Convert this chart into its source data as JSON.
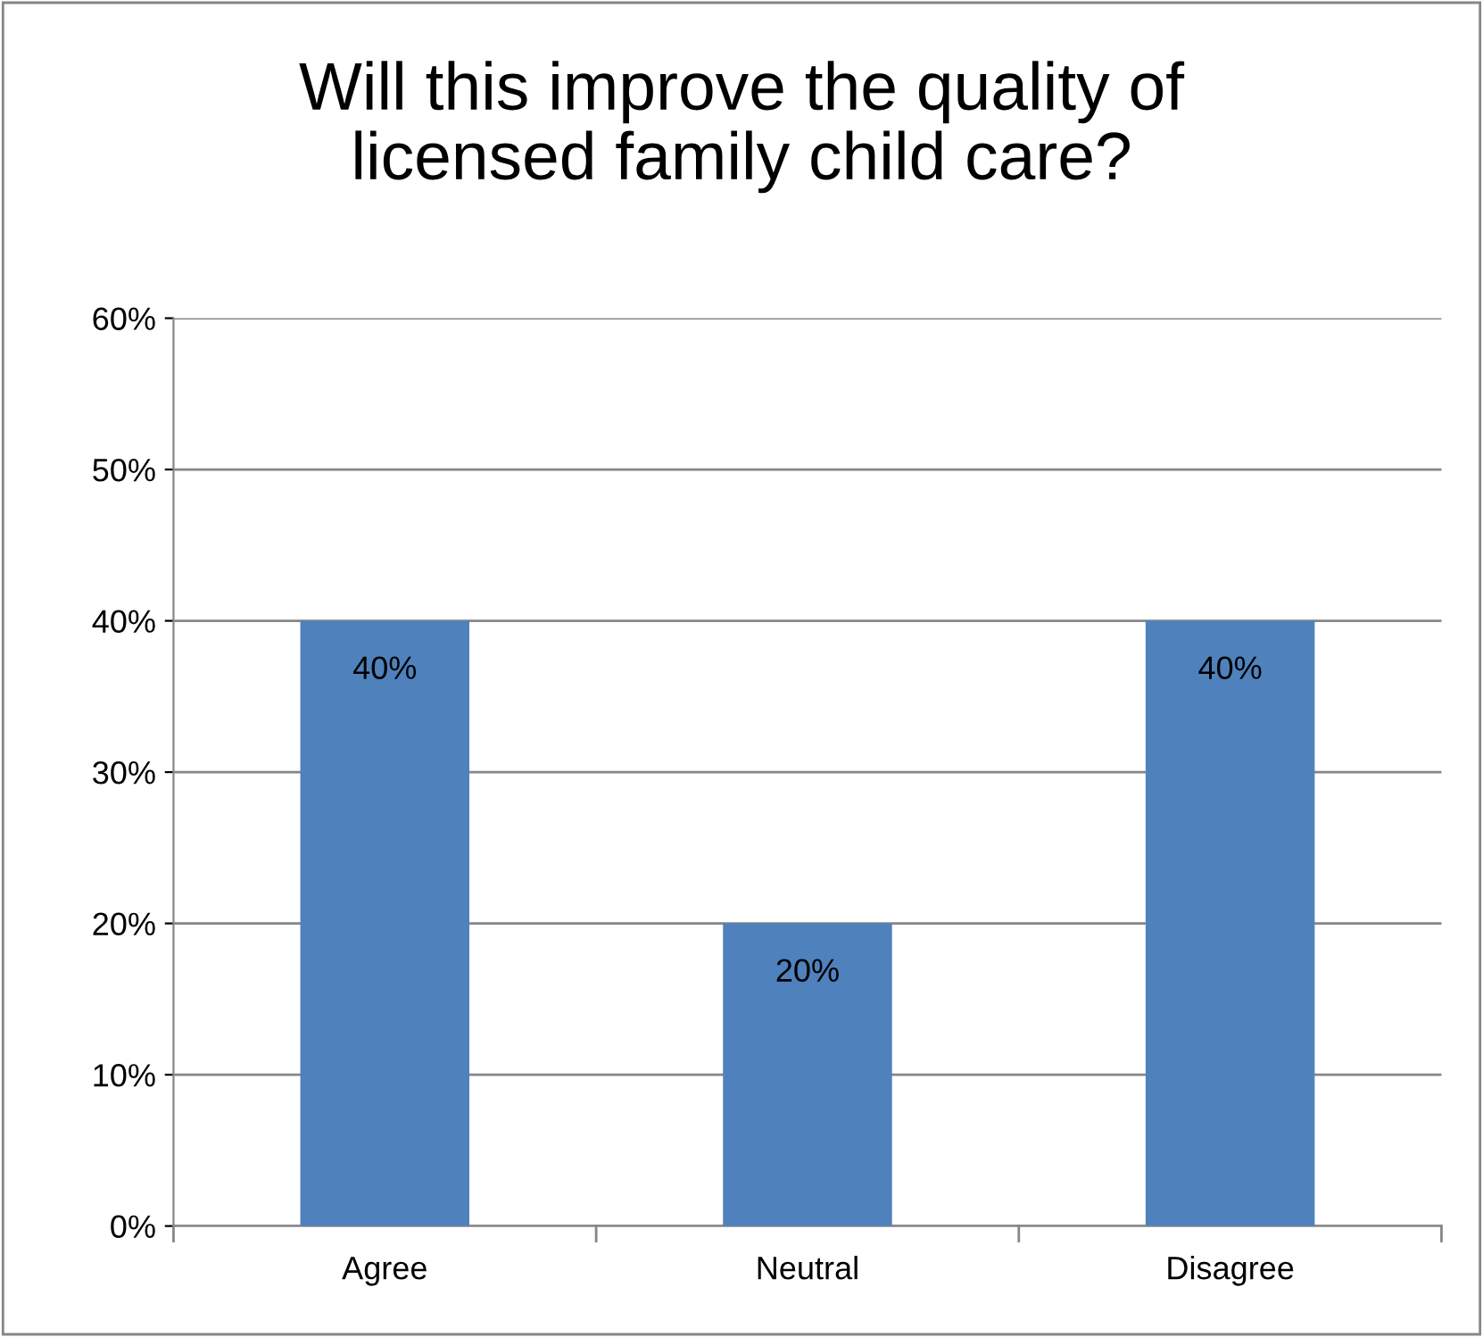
{
  "chart_data": {
    "type": "bar",
    "title": "Will this improve the quality of\nlicensed family child care?",
    "categories": [
      "Agree",
      "Neutral",
      "Disagree"
    ],
    "values": [
      40,
      20,
      40
    ],
    "color": "#4f81bd",
    "value_labels": [
      "40%",
      "20%",
      "40%"
    ],
    "ylim": [
      0,
      60
    ],
    "yticks": [
      {
        "value": 0,
        "label": "0%"
      },
      {
        "value": 10,
        "label": "10%"
      },
      {
        "value": 20,
        "label": "20%"
      },
      {
        "value": 30,
        "label": "30%"
      },
      {
        "value": 40,
        "label": "40%"
      },
      {
        "value": 50,
        "label": "50%"
      },
      {
        "value": 60,
        "label": "60%"
      }
    ],
    "grid": "y",
    "legend": false
  }
}
